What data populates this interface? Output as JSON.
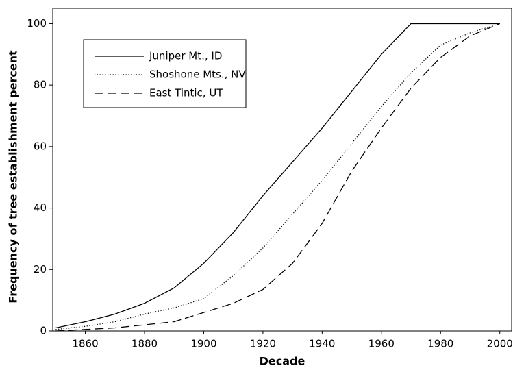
{
  "chart_data": {
    "type": "line",
    "xlabel": "Decade",
    "ylabel": "Frequency of tree establishment percent",
    "x": [
      1850,
      1860,
      1870,
      1880,
      1890,
      1900,
      1910,
      1920,
      1930,
      1940,
      1950,
      1960,
      1970,
      1980,
      1990,
      2000
    ],
    "series": [
      {
        "name": "Juniper Mt., ID",
        "color": "#000000",
        "dash": "solid",
        "values": [
          1,
          3,
          5.5,
          9,
          14,
          22,
          32,
          44,
          55,
          66,
          78,
          90,
          100,
          100,
          100,
          100
        ]
      },
      {
        "name": "Shoshone Mts., NV",
        "color": "#000000",
        "dash": "dotted",
        "values": [
          0.5,
          1.5,
          3,
          5.5,
          7.5,
          10.5,
          18,
          27,
          38,
          49,
          61,
          73,
          84,
          93,
          97,
          100
        ]
      },
      {
        "name": "East Tintic, UT",
        "color": "#000000",
        "dash": "dashed",
        "values": [
          0,
          0.5,
          1,
          2,
          3,
          6,
          9,
          13.5,
          22,
          35,
          52,
          66,
          79,
          89,
          96,
          100
        ]
      }
    ],
    "xlim": [
      1849,
      2004
    ],
    "ylim": [
      0,
      105
    ],
    "xticks": [
      1860,
      1880,
      1900,
      1920,
      1940,
      1960,
      1980,
      2000
    ],
    "yticks": [
      0,
      20,
      40,
      60,
      80,
      100
    ],
    "grid": false,
    "legend": "upper left"
  }
}
